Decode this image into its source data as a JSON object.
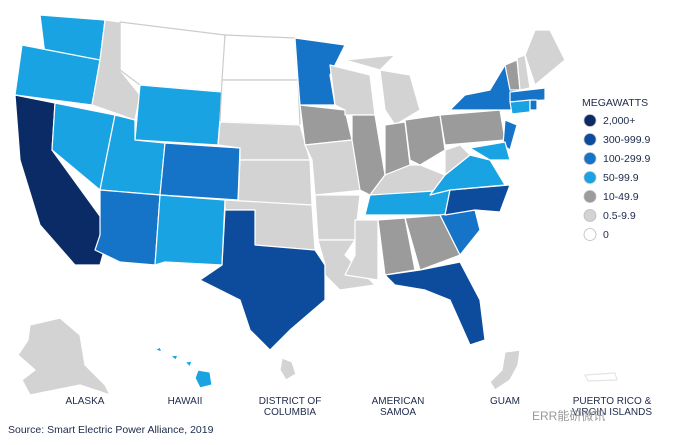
{
  "legend": {
    "title": "MEGAWATTS",
    "items": [
      {
        "label": "2,000+",
        "color": "#0a2b66"
      },
      {
        "label": "300-999.9",
        "color": "#0d4c9c"
      },
      {
        "label": "100-299.9",
        "color": "#1573c8"
      },
      {
        "label": "50-99.9",
        "color": "#19a3e2"
      },
      {
        "label": "10-49.9",
        "color": "#9b9b9b"
      },
      {
        "label": "0.5-9.9",
        "color": "#d3d3d3"
      },
      {
        "label": "0",
        "color": "#ffffff"
      }
    ]
  },
  "territories": [
    [
      "ALASKA"
    ],
    [
      "HAWAII"
    ],
    [
      "DISTRICT OF",
      "COLUMBIA"
    ],
    [
      "AMERICAN",
      "SAMOA"
    ],
    [
      "GUAM"
    ],
    [
      "PUERTO RICO &",
      "VIRGIN ISLANDS"
    ]
  ],
  "source": "Source: Smart Electric Power Alliance, 2019",
  "watermark": "ERR能研微讯"
}
